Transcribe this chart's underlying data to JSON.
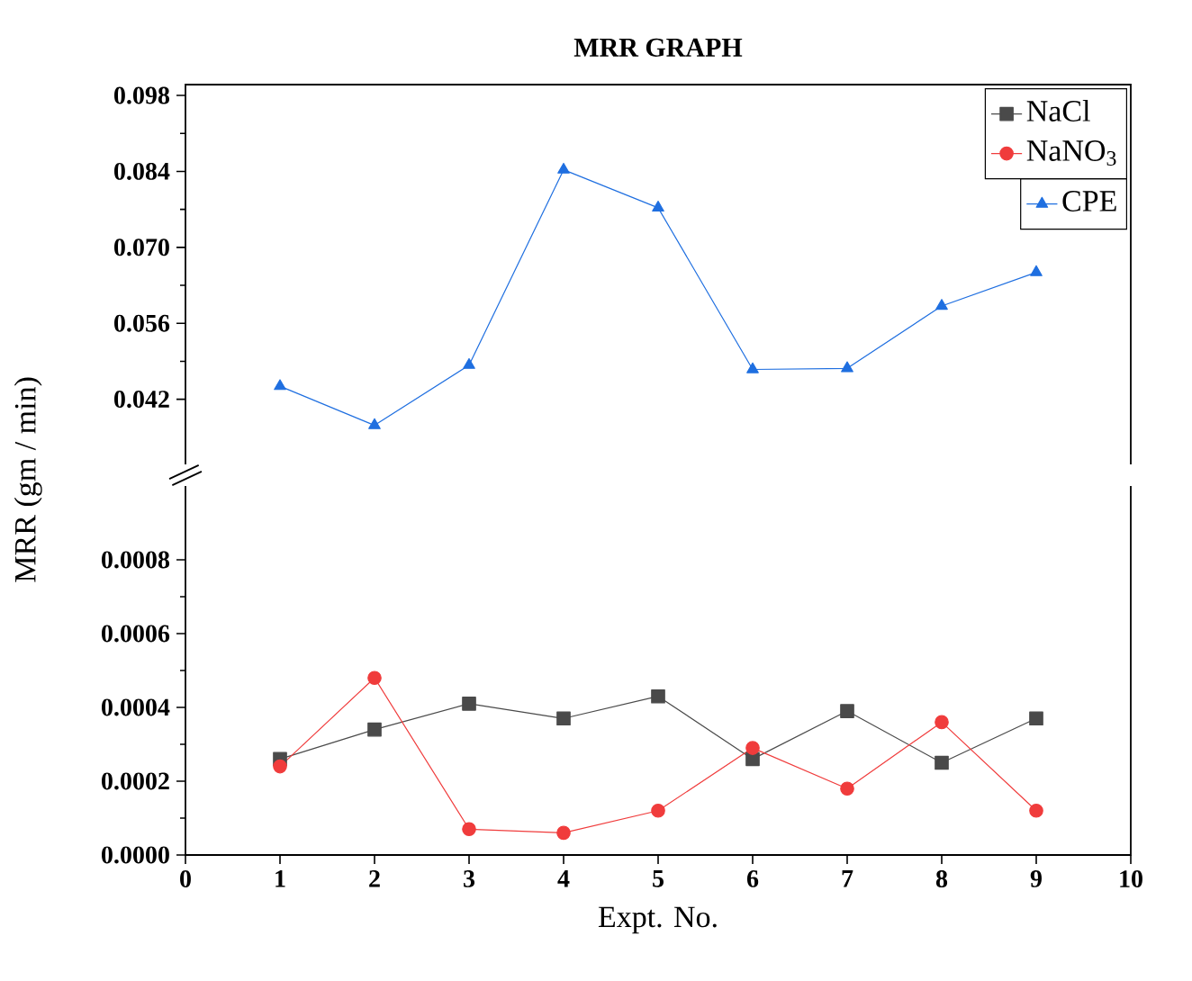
{
  "chart_data": [
    {
      "type": "line",
      "title": "MRR GRAPH",
      "ylabel": "MRR (gm / min)",
      "xlim": [
        0,
        10
      ],
      "ylim": [
        0.03,
        0.1
      ],
      "tick_labels": "y",
      "legend": "top right",
      "yticks": [
        0.042,
        0.056,
        {
          "value": 0.07,
          "label": "0.070"
        },
        0.084,
        0.098
      ],
      "x": [
        1,
        2,
        3,
        4,
        5,
        6,
        7,
        8,
        9
      ],
      "series": [
        {
          "name": "CPE",
          "color": "#1f6fe0",
          "marker": "triangle",
          "values": [
            0.0444,
            0.0372,
            0.0483,
            0.0843,
            0.0773,
            0.0475,
            0.0477,
            0.0592,
            0.0654
          ]
        }
      ]
    },
    {
      "type": "line",
      "xlabel": "Expt. No.",
      "xlim": [
        0,
        10
      ],
      "ylim": [
        0,
        0.001
      ],
      "legend": "top right",
      "xticks": [
        0,
        1,
        2,
        3,
        4,
        5,
        6,
        7,
        8,
        9,
        10
      ],
      "yticks": [
        {
          "value": 0,
          "label": "0.0000"
        },
        0.0002,
        0.0004,
        0.0006,
        0.0008
      ],
      "x": [
        1,
        2,
        3,
        4,
        5,
        6,
        7,
        8,
        9
      ],
      "series": [
        {
          "name": "NaCl",
          "color": "#4a4a4a",
          "marker": "square",
          "values": [
            0.00026,
            0.00034,
            0.00041,
            0.00037,
            0.00043,
            0.00026,
            0.00039,
            0.00025,
            0.00037
          ]
        },
        {
          "name": "NaNO$_{3}$",
          "color": "#f03c3c",
          "marker": "circle",
          "values": [
            0.00024,
            0.00048,
            7e-05,
            6e-05,
            0.00012,
            0.00029,
            0.00018,
            0.00036,
            0.00012
          ]
        }
      ]
    }
  ]
}
